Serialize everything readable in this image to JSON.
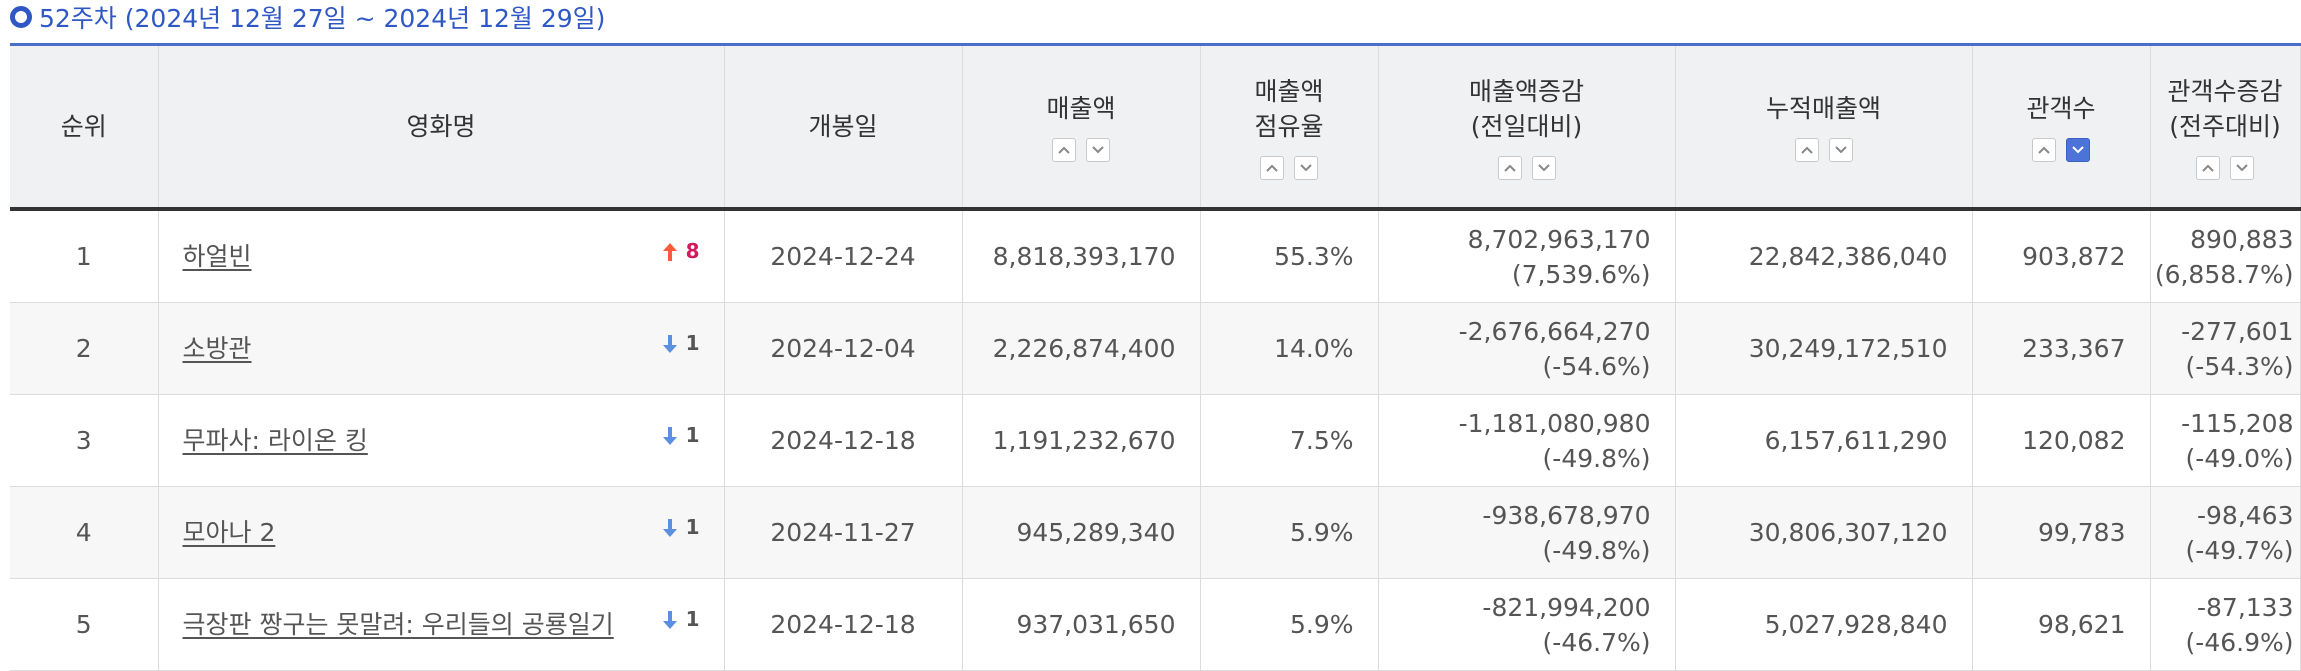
{
  "week_title": "52주차 (2024년 12월 27일 ~ 2024년 12월 29일)",
  "columns": {
    "rank": "순위",
    "title": "영화명",
    "open_date": "개봉일",
    "sales": "매출액",
    "share_line1": "매출액",
    "share_line2": "점유율",
    "sales_change_line1": "매출액증감",
    "sales_change_line2": "(전일대비)",
    "cumulative_sales": "누적매출액",
    "audience": "관객수",
    "audience_change_line1": "관객수증감",
    "audience_change_line2": "(전주대비)"
  },
  "colors": {
    "accent": "#2f58c5",
    "up_arrow": "#ff5b3a",
    "up_number": "#d21a5d",
    "down_arrow": "#5b8fe0",
    "active_sort": "#4b73d8"
  },
  "rows": [
    {
      "rank": "1",
      "title": "하얼빈",
      "rank_change_icon": "arrow-up-icon",
      "rank_change": "8",
      "open_date": "2024-12-24",
      "sales": "8,818,393,170",
      "share": "55.3%",
      "sales_change": "8,702,963,170",
      "sales_change_pct": "(7,539.6%)",
      "cumulative_sales": "22,842,386,040",
      "audience": "903,872",
      "audience_change": "890,883",
      "audience_change_pct": "(6,858.7%)"
    },
    {
      "rank": "2",
      "title": "소방관",
      "rank_change_icon": "arrow-down-icon",
      "rank_change": "1",
      "open_date": "2024-12-04",
      "sales": "2,226,874,400",
      "share": "14.0%",
      "sales_change": "-2,676,664,270",
      "sales_change_pct": "(-54.6%)",
      "cumulative_sales": "30,249,172,510",
      "audience": "233,367",
      "audience_change": "-277,601",
      "audience_change_pct": "(-54.3%)"
    },
    {
      "rank": "3",
      "title": "무파사: 라이온 킹",
      "rank_change_icon": "arrow-down-icon",
      "rank_change": "1",
      "open_date": "2024-12-18",
      "sales": "1,191,232,670",
      "share": "7.5%",
      "sales_change": "-1,181,080,980",
      "sales_change_pct": "(-49.8%)",
      "cumulative_sales": "6,157,611,290",
      "audience": "120,082",
      "audience_change": "-115,208",
      "audience_change_pct": "(-49.0%)"
    },
    {
      "rank": "4",
      "title": "모아나 2",
      "rank_change_icon": "arrow-down-icon",
      "rank_change": "1",
      "open_date": "2024-11-27",
      "sales": "945,289,340",
      "share": "5.9%",
      "sales_change": "-938,678,970",
      "sales_change_pct": "(-49.8%)",
      "cumulative_sales": "30,806,307,120",
      "audience": "99,783",
      "audience_change": "-98,463",
      "audience_change_pct": "(-49.7%)"
    },
    {
      "rank": "5",
      "title": "극장판 짱구는 못말려: 우리들의 공룡일기",
      "rank_change_icon": "arrow-down-icon",
      "rank_change": "1",
      "open_date": "2024-12-18",
      "sales": "937,031,650",
      "share": "5.9%",
      "sales_change": "-821,994,200",
      "sales_change_pct": "(-46.7%)",
      "cumulative_sales": "5,027,928,840",
      "audience": "98,621",
      "audience_change": "-87,133",
      "audience_change_pct": "(-46.9%)"
    }
  ]
}
